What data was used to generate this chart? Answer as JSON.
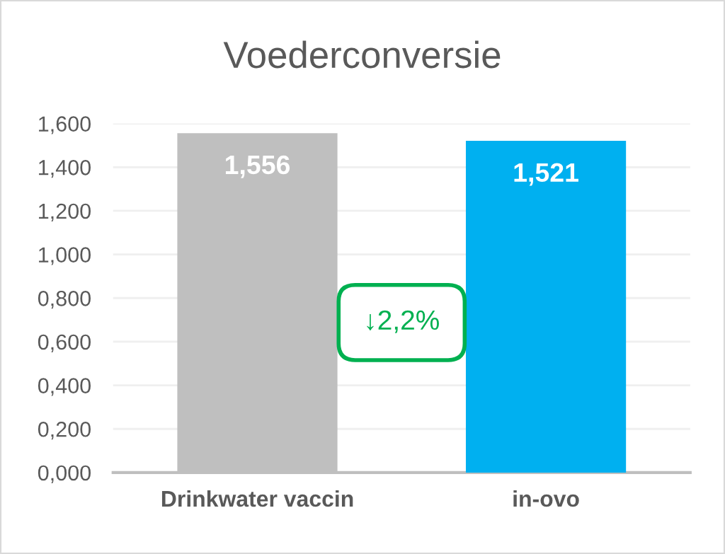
{
  "chart_data": {
    "type": "bar",
    "title": "Voederconversie",
    "categories": [
      "Drinkwater vaccin",
      "in-ovo"
    ],
    "values": [
      1.556,
      1.521
    ],
    "colors": [
      "#bfbfbf",
      "#00b0f0"
    ],
    "value_labels": [
      "1,556",
      "1,521"
    ],
    "ylim": [
      0,
      1.6
    ],
    "yticks": [
      {
        "value": 0,
        "label": "0,000"
      },
      {
        "value": 0.2,
        "label": "0,200"
      },
      {
        "value": 0.4,
        "label": "0,400"
      },
      {
        "value": 0.6,
        "label": "0,600"
      },
      {
        "value": 0.8,
        "label": "0,800"
      },
      {
        "value": 1.0,
        "label": "1,000"
      },
      {
        "value": 1.2,
        "label": "1,200"
      },
      {
        "value": 1.4,
        "label": "1,400"
      },
      {
        "value": 1.6,
        "label": "1,600"
      }
    ],
    "grid": "y",
    "annotations": [
      "↓2,2%"
    ]
  }
}
